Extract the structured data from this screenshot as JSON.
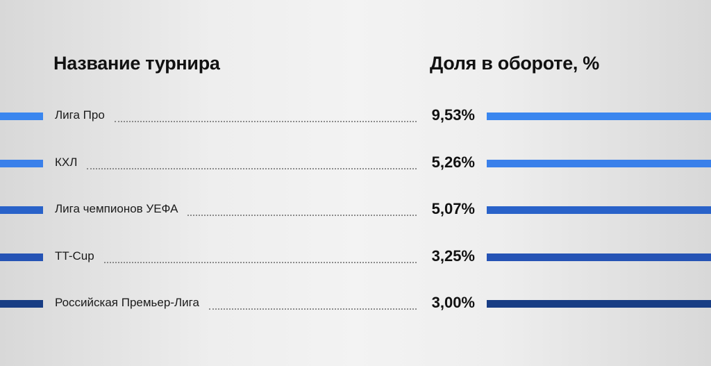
{
  "headers": {
    "tournament": "Название турнира",
    "share": "Доля в обороте, %"
  },
  "chart_data": {
    "type": "table",
    "columns": [
      "Название турнира",
      "Доля в обороте, %"
    ],
    "rows": [
      {
        "name": "Лига Про",
        "value": 9.53,
        "label": "9,53%",
        "color": "#3a86ef"
      },
      {
        "name": "КХЛ",
        "value": 5.26,
        "label": "5,26%",
        "color": "#3a80ea"
      },
      {
        "name": "Лига чемпионов УЕФА",
        "value": 5.07,
        "label": "5,07%",
        "color": "#2962c9"
      },
      {
        "name": "TT-Cup",
        "value": 3.25,
        "label": "3,25%",
        "color": "#2553b5"
      },
      {
        "name": "Российская Премьер-Лига",
        "value": 3.0,
        "label": "3,00%",
        "color": "#183d84"
      }
    ]
  }
}
